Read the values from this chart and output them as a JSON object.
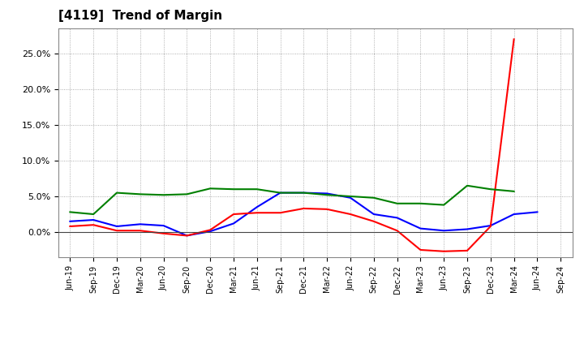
{
  "title": "[4119]  Trend of Margin",
  "title_fontsize": 11,
  "labels": [
    "Jun-19",
    "Sep-19",
    "Dec-19",
    "Mar-20",
    "Jun-20",
    "Sep-20",
    "Dec-20",
    "Mar-21",
    "Jun-21",
    "Sep-21",
    "Dec-21",
    "Mar-22",
    "Jun-22",
    "Sep-22",
    "Dec-22",
    "Mar-23",
    "Jun-23",
    "Sep-23",
    "Dec-23",
    "Mar-24",
    "Jun-24",
    "Sep-24"
  ],
  "ordinary_income": [
    1.5,
    1.7,
    0.8,
    1.1,
    0.9,
    -0.5,
    0.1,
    1.2,
    3.5,
    5.5,
    5.5,
    5.4,
    4.8,
    2.5,
    2.0,
    0.5,
    0.2,
    0.4,
    0.9,
    2.5,
    2.8,
    null
  ],
  "net_income": [
    0.8,
    1.0,
    0.2,
    0.2,
    -0.2,
    -0.5,
    0.3,
    2.5,
    2.7,
    2.7,
    3.3,
    3.2,
    2.5,
    1.5,
    0.2,
    -2.5,
    -2.7,
    -2.6,
    0.8,
    27.0,
    null,
    null
  ],
  "operating_cashflow": [
    2.8,
    2.5,
    5.5,
    5.3,
    5.2,
    5.3,
    6.1,
    6.0,
    6.0,
    5.5,
    5.5,
    5.2,
    5.0,
    4.8,
    4.0,
    4.0,
    3.8,
    6.5,
    6.0,
    5.7,
    null,
    null
  ],
  "ordinary_income_color": "#0000ff",
  "net_income_color": "#ff0000",
  "operating_cashflow_color": "#008000",
  "line_width": 1.5,
  "ylim_min": -3.5,
  "ylim_max": 28.5,
  "ytick_vals": [
    0.0,
    5.0,
    10.0,
    15.0,
    20.0,
    25.0
  ],
  "ytick_labels": [
    "0.0%",
    "5.0%",
    "10.0%",
    "15.0%",
    "20.0%",
    "25.0%"
  ],
  "background_color": "#ffffff",
  "plot_bg_color": "#ffffff",
  "grid_color": "#999999"
}
